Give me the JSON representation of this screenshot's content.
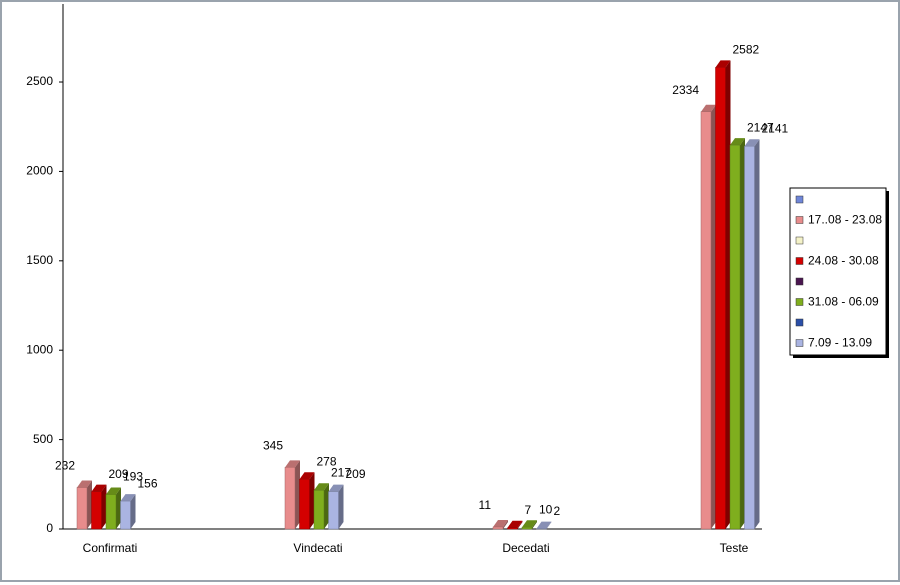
{
  "chart_data": {
    "type": "bar3d",
    "categories": [
      "Confirmati",
      "Vindecati",
      "Decedati",
      "Teste"
    ],
    "series": [
      {
        "name": "17..08 - 23.08",
        "color": "#e88c8c",
        "values": [
          232,
          345,
          11,
          2334
        ]
      },
      {
        "name": "24.08 - 30.08",
        "color": "#d40000",
        "values": [
          209,
          278,
          7,
          2582
        ]
      },
      {
        "name": "31.08 - 06.09",
        "color": "#7fae1e",
        "values": [
          193,
          217,
          10,
          2147
        ]
      },
      {
        "name": "7.09 - 13.09",
        "color": "#aab4e2",
        "values": [
          156,
          209,
          2,
          2141
        ]
      }
    ],
    "ylim": [
      0,
      2900
    ],
    "yticks": [
      0,
      500,
      1000,
      1500,
      2000,
      2500
    ],
    "legend": "right"
  }
}
